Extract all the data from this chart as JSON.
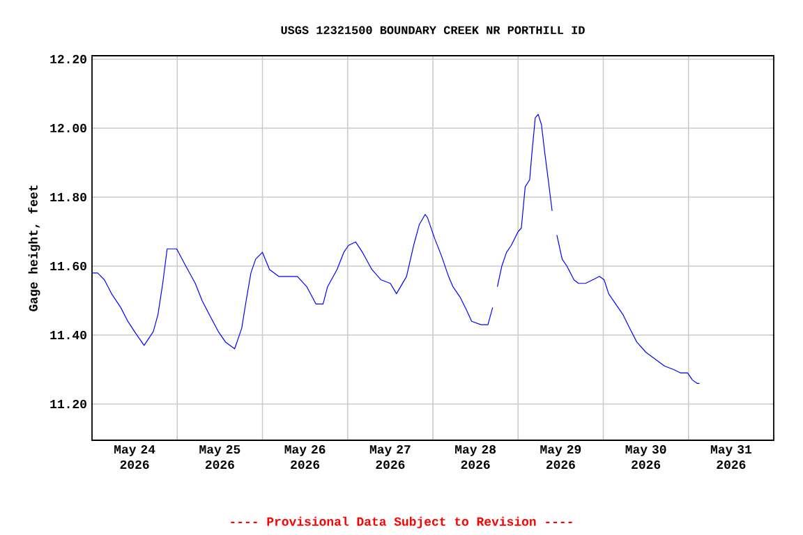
{
  "chart_data": {
    "type": "line",
    "title": "USGS 12321500 BOUNDARY CREEK NR PORTHILL ID",
    "ylabel": "Gage height, feet",
    "annotations": [
      "---- Provisional Data Subject to Revision ----"
    ],
    "xlim": [
      "2026-05-24T00:00",
      "2026-06-01T00:00"
    ],
    "xticks": [
      {
        "value": "2026-05-25T00:00",
        "label": null
      },
      {
        "value": "2026-05-26T00:00",
        "label": null
      },
      {
        "value": "2026-05-27T00:00",
        "label": null
      },
      {
        "value": "2026-05-28T00:00",
        "label": null
      },
      {
        "value": "2026-05-29T00:00",
        "label": null
      },
      {
        "value": "2026-05-30T00:00",
        "label": null
      },
      {
        "value": "2026-05-31T00:00",
        "label": null
      },
      {
        "value": "2026-05-24T12:00",
        "label": "May 24 2026"
      },
      {
        "value": "2026-05-25T12:00",
        "label": "May 25 2026"
      },
      {
        "value": "2026-05-26T12:00",
        "label": "May 26 2026"
      },
      {
        "value": "2026-05-27T12:00",
        "label": "May 27 2026"
      },
      {
        "value": "2026-05-28T12:00",
        "label": "May 28 2026"
      },
      {
        "value": "2026-05-29T12:00",
        "label": "May 29 2026"
      },
      {
        "value": "2026-05-30T12:00",
        "label": "May 30 2026"
      },
      {
        "value": "2026-05-31T12:00",
        "label": "May 31 2026"
      }
    ],
    "ylim": [
      11.095,
      12.21
    ],
    "yticks": [
      {
        "value": 11.2,
        "label": "11.20"
      },
      {
        "value": 11.4,
        "label": "11.40"
      },
      {
        "value": 11.6,
        "label": "11.60"
      },
      {
        "value": 11.8,
        "label": "11.80"
      },
      {
        "value": 12.0,
        "label": "12.00"
      },
      {
        "value": 12.2,
        "label": "12.20"
      }
    ],
    "grid": true,
    "legend": false,
    "marker": "none",
    "line_style": "solid",
    "series": [
      {
        "color": "#0000ff",
        "x": [
          "2026-05-24T00:00",
          "2026-05-24T01:35",
          "2026-05-24T03:30",
          "2026-05-24T05:30",
          "2026-05-24T08:05",
          "2026-05-24T10:05",
          "2026-05-24T12:00",
          "2026-05-24T14:40",
          "2026-05-24T17:15",
          "2026-05-24T18:35",
          "2026-05-24T19:55",
          "2026-05-24T21:10",
          "2026-05-24T23:50",
          "2026-05-25T02:25",
          "2026-05-25T05:05",
          "2026-05-25T07:00",
          "2026-05-25T09:00",
          "2026-05-25T11:35",
          "2026-05-25T13:35",
          "2026-05-25T16:10",
          "2026-05-25T18:10",
          "2026-05-25T19:25",
          "2026-05-25T20:45",
          "2026-05-25T22:05",
          "2026-05-26T00:00",
          "2026-05-26T02:00",
          "2026-05-26T04:35",
          "2026-05-26T07:15",
          "2026-05-26T09:50",
          "2026-05-26T12:30",
          "2026-05-26T15:05",
          "2026-05-26T17:05",
          "2026-05-26T18:20",
          "2026-05-26T21:00",
          "2026-05-26T22:55",
          "2026-05-27T00:15",
          "2026-05-27T02:15",
          "2026-05-27T04:10",
          "2026-05-27T06:50",
          "2026-05-27T09:25",
          "2026-05-27T12:00",
          "2026-05-27T13:45",
          "2026-05-27T16:35",
          "2026-05-27T18:35",
          "2026-05-27T20:10",
          "2026-05-27T21:50",
          "2026-05-27T22:30",
          "2026-05-28T00:30",
          "2026-05-28T02:25",
          "2026-05-28T04:25",
          "2026-05-28T05:40",
          "2026-05-28T07:40",
          "2026-05-28T09:35",
          "2026-05-28T10:55",
          "2026-05-28T13:35",
          "2026-05-28T15:30",
          "2026-05-28T16:50",
          "2026-05-28T17:30",
          "2026-05-28T18:10",
          "2026-05-28T19:25",
          "2026-05-28T20:45",
          "2026-05-28T22:05",
          "2026-05-29T00:00",
          "2026-05-29T00:55",
          "2026-05-29T02:00",
          "2026-05-29T03:15",
          "2026-05-29T03:55",
          "2026-05-29T04:50",
          "2026-05-29T05:40",
          "2026-05-29T06:35",
          "2026-05-29T07:30",
          "2026-05-29T08:30",
          "2026-05-29T09:35",
          "2026-05-29T10:15",
          "2026-05-29T10:55",
          "2026-05-29T12:25",
          "2026-05-29T13:45",
          "2026-05-29T15:45",
          "2026-05-29T17:00",
          "2026-05-29T19:00",
          "2026-05-29T21:00",
          "2026-05-29T22:55",
          "2026-05-30T00:15",
          "2026-05-30T01:30",
          "2026-05-30T03:30",
          "2026-05-30T05:30",
          "2026-05-30T07:25",
          "2026-05-30T09:25",
          "2026-05-30T12:00",
          "2026-05-30T14:40",
          "2026-05-30T17:15",
          "2026-05-30T19:50",
          "2026-05-30T21:50",
          "2026-05-30T23:45",
          "2026-05-31T01:05",
          "2026-05-31T02:25",
          "2026-05-31T03:05"
        ],
        "values": [
          11.58,
          11.58,
          11.56,
          11.52,
          11.48,
          11.44,
          11.41,
          11.37,
          11.41,
          11.46,
          11.55,
          11.65,
          11.65,
          11.6,
          11.55,
          11.5,
          11.46,
          11.41,
          11.38,
          11.36,
          11.42,
          11.5,
          11.58,
          11.62,
          11.64,
          11.59,
          11.57,
          11.57,
          11.57,
          11.54,
          11.49,
          11.49,
          11.54,
          11.59,
          11.64,
          11.66,
          11.67,
          11.64,
          11.59,
          11.56,
          11.55,
          11.52,
          11.57,
          11.66,
          11.72,
          11.75,
          11.74,
          11.68,
          11.63,
          11.57,
          11.54,
          11.51,
          11.47,
          11.44,
          11.43,
          11.43,
          11.48,
          null,
          11.54,
          11.6,
          11.64,
          11.66,
          11.7,
          11.71,
          11.83,
          11.85,
          11.93,
          12.03,
          12.04,
          12.01,
          11.93,
          11.85,
          11.76,
          null,
          11.69,
          11.62,
          11.6,
          11.56,
          11.55,
          11.55,
          11.56,
          11.57,
          11.56,
          11.52,
          11.49,
          11.46,
          11.42,
          11.38,
          11.35,
          11.33,
          11.31,
          11.3,
          11.29,
          11.29,
          11.27,
          11.26,
          11.26
        ]
      }
    ]
  }
}
